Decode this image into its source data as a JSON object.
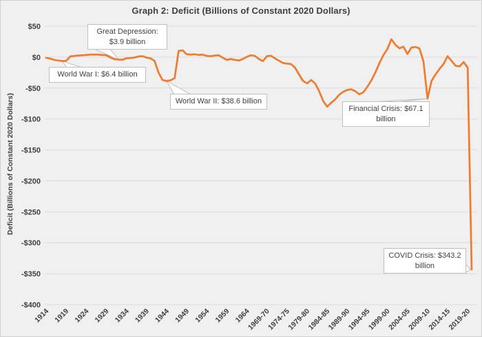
{
  "title": "Graph 2: Deficit (Billions of Constant 2020 Dollars)",
  "y_axis_title": "Deficit (Billions of Constant 2020 Dollars)",
  "colors": {
    "line": "#ED7D31",
    "background": "#F0F0F0",
    "gridline": "#DBDBDB",
    "text": "#3F3F3F",
    "callout_bg": "#FFFFFF",
    "callout_border": "#BFBFBF"
  },
  "chart_data": {
    "type": "line",
    "title": "Graph 2: Deficit (Billions of Constant 2020 Dollars)",
    "xlabel": "",
    "ylabel": "Deficit (Billions of Constant 2020 Dollars)",
    "ylim": [
      -400,
      50
    ],
    "grid": "horizontal",
    "legend": "none",
    "y_tick_values": [
      50,
      0,
      -50,
      -100,
      -150,
      -200,
      -250,
      -300,
      -350,
      -400
    ],
    "y_tick_labels": [
      "$50",
      "$0",
      "-$50",
      "-$100",
      "-$150",
      "-$200",
      "-$250",
      "-$300",
      "-$350",
      "-$400"
    ],
    "x_tick_labels": [
      "1914",
      "1919",
      "1924",
      "1929",
      "1934",
      "1939",
      "1944",
      "1949",
      "1954",
      "1959",
      "1964",
      "1969-70",
      "1974-75",
      "1979-80",
      "1984-85",
      "1989-90",
      "1994-95",
      "1999-00",
      "2004-05",
      "2009-10",
      "2014-15",
      "2019-20"
    ],
    "x_tick_every": 5,
    "start_year": 1914,
    "end_year": 2020,
    "series": [
      {
        "name": "Deficit (Billions of Constant 2020 Dollars)",
        "values": [
          -1,
          -2.5,
          -4.4,
          -5.5,
          -6.4,
          -6,
          1.1,
          2,
          2.5,
          3,
          3.5,
          4,
          4,
          4,
          3.5,
          3,
          -0.7,
          -3.3,
          -3.9,
          -4.4,
          -1.8,
          -1.5,
          -0.7,
          1,
          1.5,
          -0.7,
          -2,
          -6,
          -25,
          -37,
          -38.6,
          -37.5,
          -34,
          10,
          11,
          4.5,
          4,
          4.5,
          3.5,
          4,
          2,
          1.5,
          2.5,
          3,
          -1,
          -4.5,
          -3,
          -4.5,
          -5.5,
          -3,
          0.5,
          3,
          2,
          -3,
          -6.5,
          1.5,
          2.2,
          -2,
          -5.8,
          -9.5,
          -10.5,
          -11.3,
          -17,
          -28,
          -38.5,
          -42.5,
          -37,
          -42.5,
          -55,
          -70.7,
          -80,
          -74,
          -68.4,
          -60.8,
          -56,
          -53,
          -52,
          -55,
          -60,
          -57,
          -48,
          -38,
          -25,
          -10,
          3,
          13,
          29,
          19.8,
          14.3,
          16.9,
          5,
          15.5,
          16.5,
          14,
          -7,
          -67.1,
          -38.5,
          -28,
          -19,
          -11,
          1.5,
          -6,
          -14,
          -15,
          -8,
          -17,
          -343.2
        ]
      }
    ]
  },
  "annotations": [
    {
      "id": "gd",
      "text": "Great Depression: $3.9 billion",
      "year": 1932,
      "value": -3.9
    },
    {
      "id": "wwi",
      "text": "World War I: $6.4 billion",
      "year": 1918,
      "value": -6.4
    },
    {
      "id": "wwii",
      "text": "World War II: $38.6 billion",
      "year": 1944,
      "value": -38.6
    },
    {
      "id": "fc",
      "text": "Financial Crisis: $67.1 billion",
      "year": 2009,
      "value": -67.1
    },
    {
      "id": "covid",
      "text": "COVID Crisis: $343.2 billion",
      "year": 2020,
      "value": -343.2
    }
  ]
}
